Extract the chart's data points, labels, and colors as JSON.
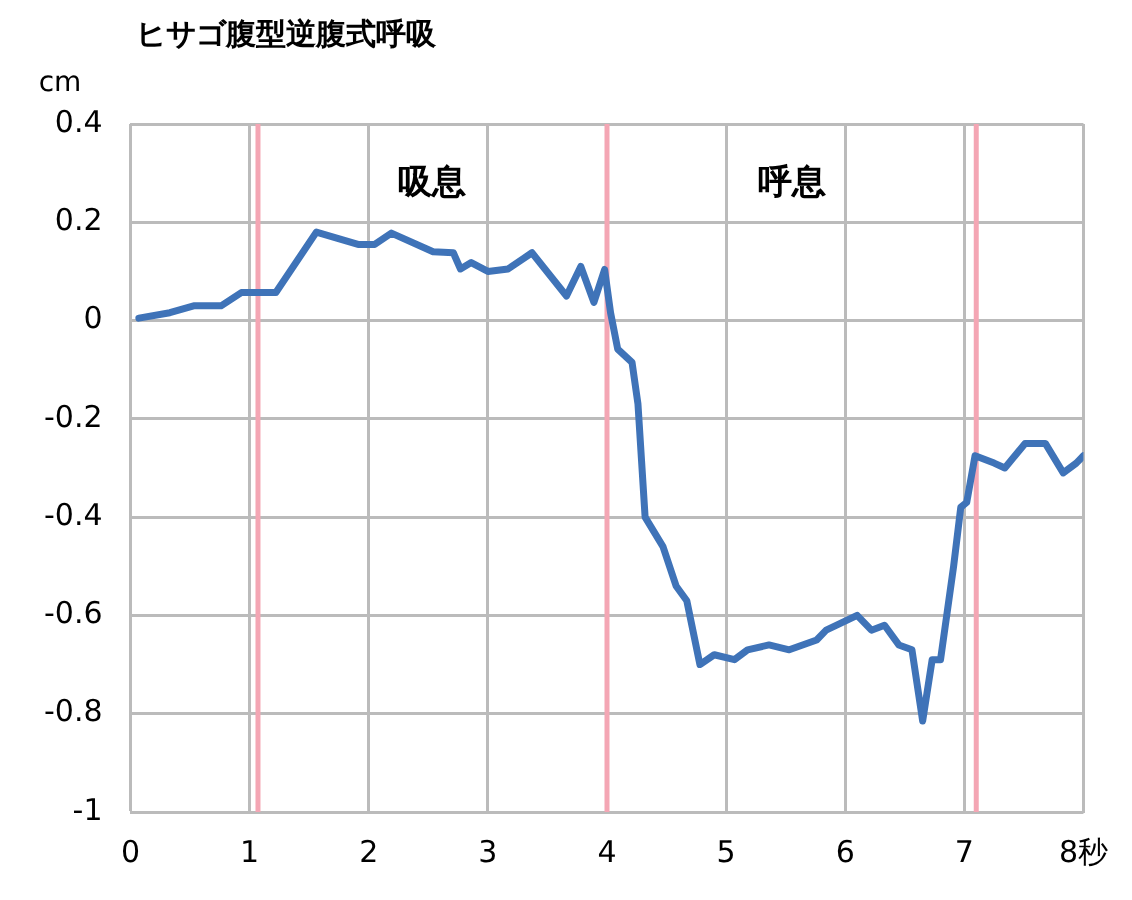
{
  "chart_data": {
    "type": "line",
    "title": "ヒサゴ腹型逆腹式呼吸",
    "ylabel": "cm",
    "x": [
      0.07,
      0.33,
      0.53,
      0.76,
      0.93,
      1.22,
      1.56,
      1.91,
      2.05,
      2.19,
      2.54,
      2.71,
      2.77,
      2.86,
      3.0,
      3.17,
      3.37,
      3.66,
      3.78,
      3.89,
      3.98,
      4.03,
      4.09,
      4.21,
      4.26,
      4.32,
      4.47,
      4.58,
      4.67,
      4.78,
      4.9,
      5.07,
      5.18,
      5.36,
      5.53,
      5.76,
      5.84,
      6.1,
      6.22,
      6.33,
      6.45,
      6.56,
      6.65,
      6.73,
      6.8,
      6.91,
      6.97,
      7.02,
      7.09,
      7.25,
      7.34,
      7.51,
      7.68,
      7.83,
      7.94,
      8.0
    ],
    "series": [
      {
        "color": "#3f73b8",
        "values": [
          0.005,
          0.016,
          0.03,
          0.03,
          0.057,
          0.057,
          0.18,
          0.155,
          0.155,
          0.178,
          0.14,
          0.138,
          0.105,
          0.118,
          0.1,
          0.105,
          0.138,
          0.05,
          0.11,
          0.037,
          0.104,
          0.016,
          -0.058,
          -0.085,
          -0.17,
          -0.4,
          -0.46,
          -0.54,
          -0.57,
          -0.7,
          -0.68,
          -0.69,
          -0.67,
          -0.66,
          -0.67,
          -0.65,
          -0.63,
          -0.6,
          -0.63,
          -0.62,
          -0.66,
          -0.67,
          -0.815,
          -0.69,
          -0.69,
          -0.5,
          -0.38,
          -0.37,
          -0.275,
          -0.29,
          -0.3,
          -0.25,
          -0.25,
          -0.31,
          -0.29,
          -0.275
        ]
      }
    ],
    "xlim": [
      0,
      8
    ],
    "xticks": [
      0,
      1,
      2,
      3,
      4,
      5,
      6,
      7,
      {
        "value": 8,
        "label": "8秒"
      }
    ],
    "ylim": [
      -1,
      0.4
    ],
    "yticks": [
      -1,
      -0.8,
      -0.6,
      -0.4,
      -0.2,
      0,
      0.2,
      0.4
    ],
    "ref_lines": [
      {
        "axis": "x",
        "value": 1.07,
        "color": "#f4a6b4"
      },
      {
        "axis": "x",
        "value": 4.0,
        "color": "#f4a6b4"
      },
      {
        "axis": "x",
        "value": 7.1,
        "color": "#f4a6b4"
      }
    ],
    "annotations": [
      "吸息",
      "呼息"
    ],
    "grid": true,
    "legend": false,
    "marker": "none",
    "line_style": "solid"
  }
}
